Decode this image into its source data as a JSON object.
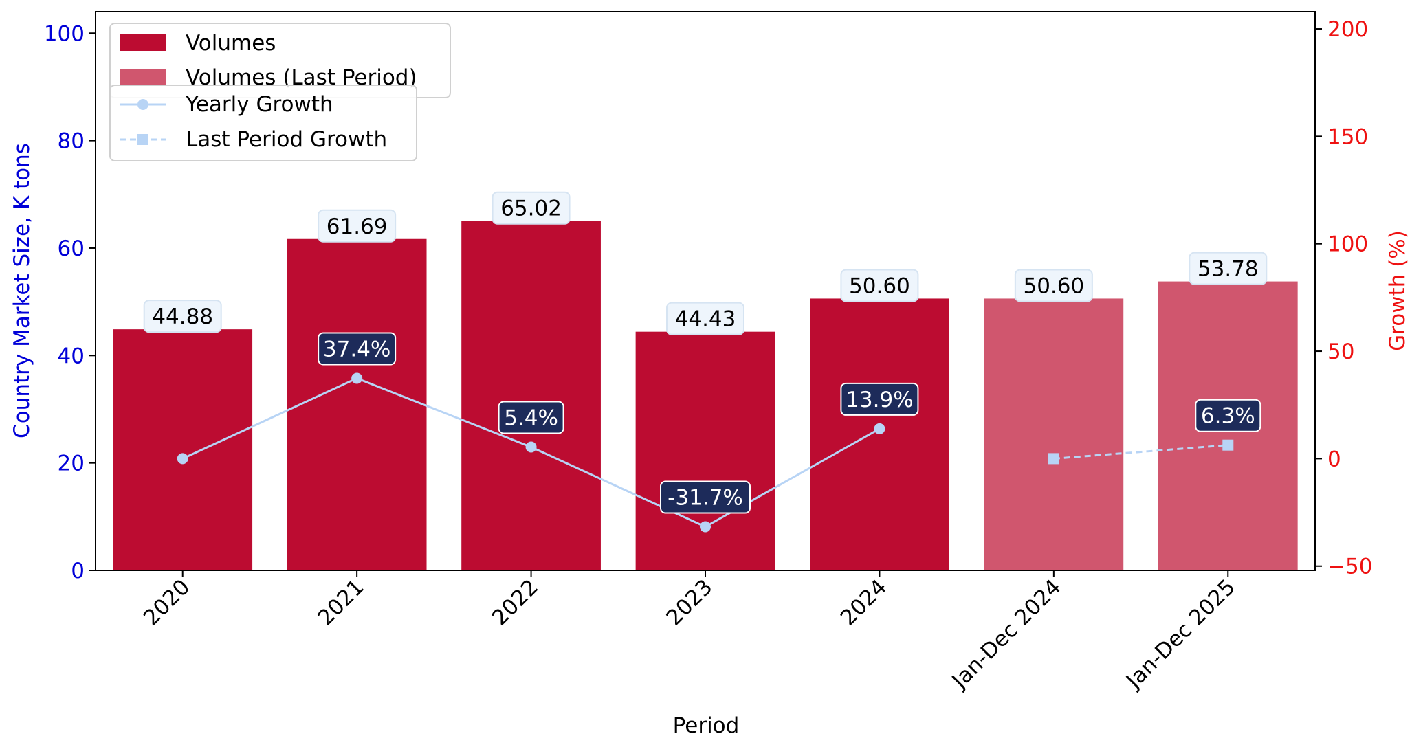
{
  "chart_data": {
    "type": "bar",
    "categories": [
      "2020",
      "2021",
      "2022",
      "2023",
      "2024",
      "Jan-Dec 2024",
      "Jan-Dec 2025"
    ],
    "series": [
      {
        "name": "Volumes",
        "kind": "bar",
        "axis": "left",
        "color": "#bc0c31",
        "values": [
          44.88,
          61.69,
          65.02,
          44.43,
          50.6,
          null,
          null
        ],
        "labels": [
          "44.88",
          "61.69",
          "65.02",
          "44.43",
          "50.60",
          "",
          ""
        ]
      },
      {
        "name": "Volumes (Last Period)",
        "kind": "bar",
        "axis": "left",
        "color": "#d0566e",
        "values": [
          null,
          null,
          null,
          null,
          null,
          50.6,
          53.78
        ],
        "labels": [
          "",
          "",
          "",
          "",
          "",
          "50.60",
          "53.78"
        ]
      },
      {
        "name": "Yearly Growth",
        "kind": "line",
        "axis": "right",
        "style": "solid",
        "marker": "circle",
        "color": "#b8d4f5",
        "values": [
          0.0,
          37.4,
          5.4,
          -31.7,
          13.9,
          null,
          null
        ],
        "labels": [
          "",
          "37.4%",
          "5.4%",
          "-31.7%",
          "13.9%",
          "",
          ""
        ]
      },
      {
        "name": "Last Period Growth",
        "kind": "line",
        "axis": "right",
        "style": "dashed",
        "marker": "square",
        "color": "#b8d4f5",
        "values": [
          null,
          null,
          null,
          null,
          null,
          0.0,
          6.3
        ],
        "labels": [
          "",
          "",
          "",
          "",
          "",
          "",
          "6.3%"
        ]
      }
    ],
    "xlabel": "Period",
    "ylabel_left": "Country Market Size, K tons",
    "ylabel_right": "Growth (%)",
    "ylim_left": [
      0,
      104
    ],
    "ylim_right": [
      -52,
      208
    ],
    "yticks_left": [
      "0",
      "20",
      "40",
      "60",
      "80",
      "100"
    ],
    "yticks_right": [
      "−50",
      "0",
      "50",
      "100",
      "150",
      "200"
    ],
    "legend_bars_position": "top-left",
    "legend_lines_position": "upper-left",
    "colors": {
      "left_axis": "#0000d8",
      "right_axis": "#ee1111",
      "bar_label_bg": "#eef5fc",
      "growth_label_bg": "#1d2b5a"
    }
  }
}
